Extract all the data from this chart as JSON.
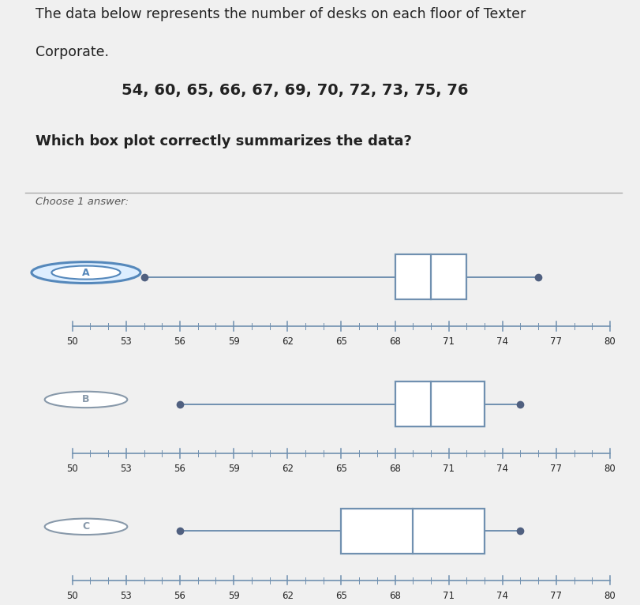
{
  "title_line1": "The data below represents the number of desks on each floor of Texter",
  "title_line2": "Corporate.",
  "data_label": "54, 60, 65, 66, 67, 69, 70, 72, 73, 75, 76",
  "question": "Which box plot correctly summarizes the data?",
  "choose_text": "Choose 1 answer:",
  "bg_color": "#f0f0f0",
  "panel_bg": "#f0f0f0",
  "axis_color": "#7090b0",
  "box_facecolor": "#ffffff",
  "box_edgecolor": "#7090b0",
  "dot_color": "#506080",
  "text_color": "#222222",
  "label_circle_color": "#7090b0",
  "xmin": 49,
  "xmax": 81,
  "xticks": [
    50,
    53,
    56,
    59,
    62,
    65,
    68,
    71,
    74,
    77,
    80
  ],
  "plots": [
    {
      "label": "A",
      "selected": true,
      "min": 54,
      "q1": 68,
      "median": 70,
      "q3": 72,
      "max": 76
    },
    {
      "label": "B",
      "selected": false,
      "min": 56,
      "q1": 68,
      "median": 70,
      "q3": 73,
      "max": 75
    },
    {
      "label": "C",
      "selected": false,
      "min": 56,
      "q1": 65,
      "median": 69,
      "q3": 73,
      "max": 75
    }
  ]
}
